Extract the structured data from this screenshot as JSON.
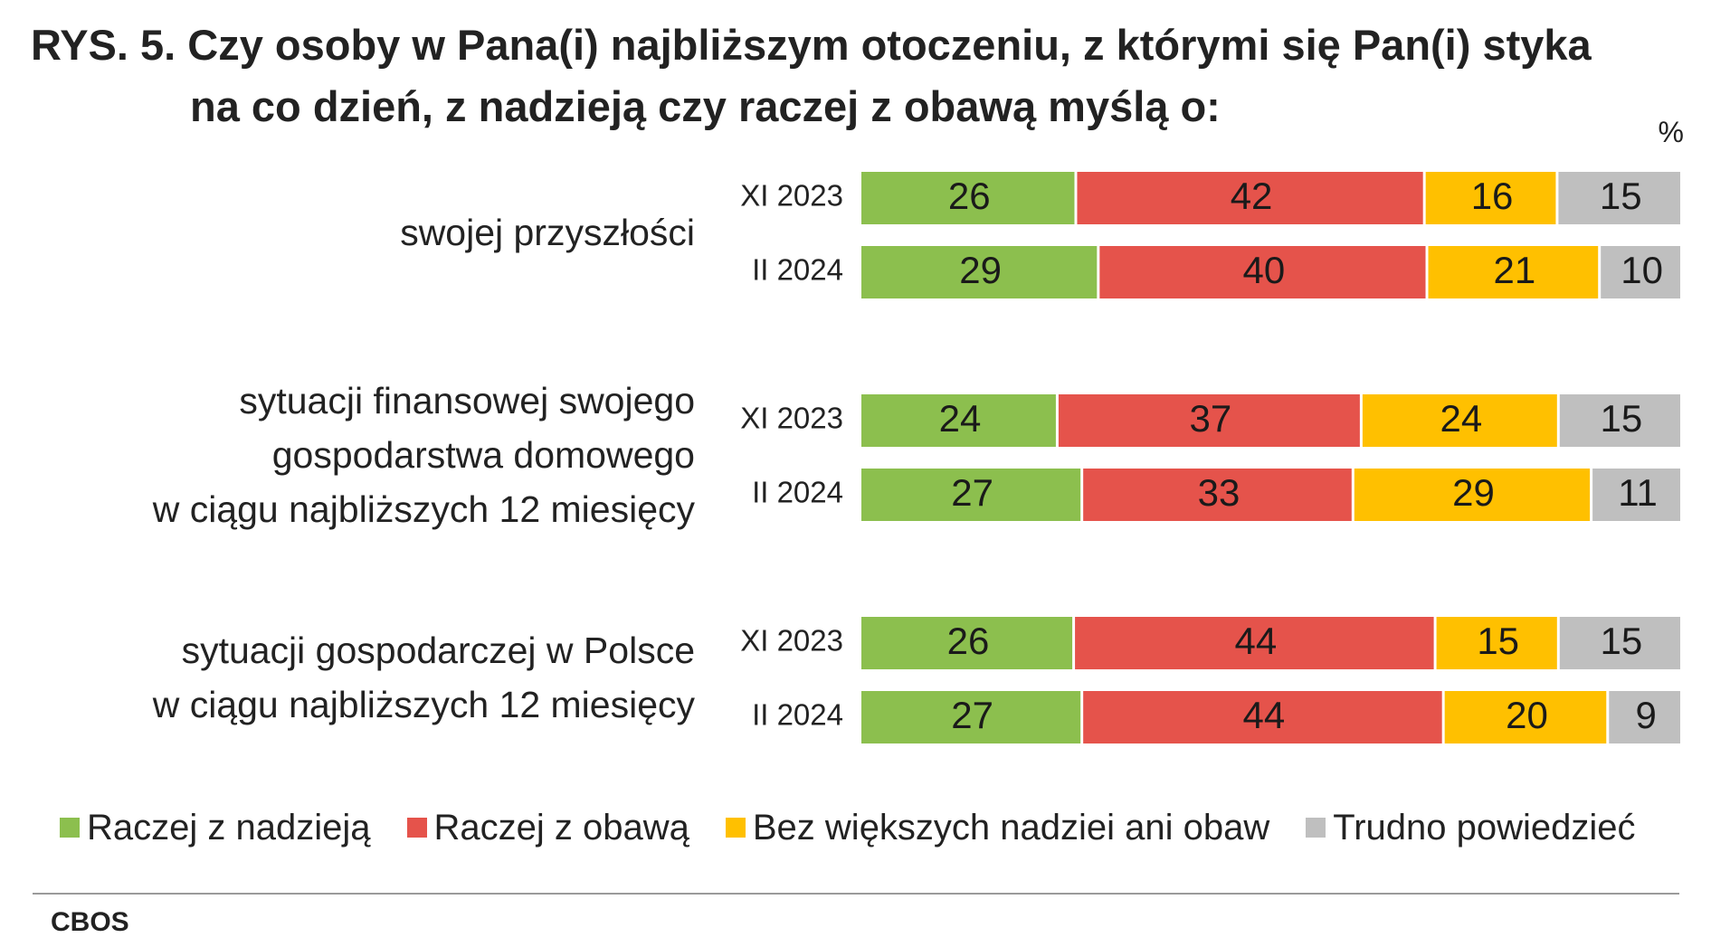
{
  "title": {
    "line1": "RYS. 5. Czy osoby w Pana(i) najbliższym otoczeniu, z którymi się Pan(i) styka",
    "line2": "na co dzień, z nadzieją czy raczej z obawą myślą o:"
  },
  "unit": "%",
  "source": "CBOS",
  "colors": {
    "hope": "#8cbf4e",
    "fear": "#e5534b",
    "neutral": "#ffc000",
    "hard_to_say": "#bfbfbf"
  },
  "chart_data": {
    "type": "bar",
    "orientation": "horizontal",
    "stacked": true,
    "normalized": "percent",
    "groups": [
      {
        "label_lines": [
          "swojej przyszłości"
        ],
        "bars": [
          {
            "period": "XI 2023",
            "values": [
              26,
              42,
              16,
              15
            ]
          },
          {
            "period": "II 2024",
            "values": [
              29,
              40,
              21,
              10
            ]
          }
        ]
      },
      {
        "label_lines": [
          "sytuacji finansowej swojego",
          "gospodarstwa domowego",
          "w ciągu najbliższych 12 miesięcy"
        ],
        "bars": [
          {
            "period": "XI 2023",
            "values": [
              24,
              37,
              24,
              15
            ]
          },
          {
            "period": "II 2024",
            "values": [
              27,
              33,
              29,
              11
            ]
          }
        ]
      },
      {
        "label_lines": [
          "sytuacji gospodarczej w Polsce",
          "w ciągu najbliższych 12 miesięcy"
        ],
        "bars": [
          {
            "period": "XI 2023",
            "values": [
              26,
              44,
              15,
              15
            ]
          },
          {
            "period": "II 2024",
            "values": [
              27,
              44,
              20,
              9
            ]
          }
        ]
      }
    ],
    "series": [
      {
        "name": "Raczej z nadzieją",
        "color": "#8cbf4e"
      },
      {
        "name": "Raczej z obawą",
        "color": "#e5534b"
      },
      {
        "name": "Bez większych nadziei ani obaw",
        "color": "#ffc000"
      },
      {
        "name": "Trudno powiedzieć",
        "color": "#bfbfbf"
      }
    ],
    "legend_position": "bottom",
    "grid": false
  }
}
